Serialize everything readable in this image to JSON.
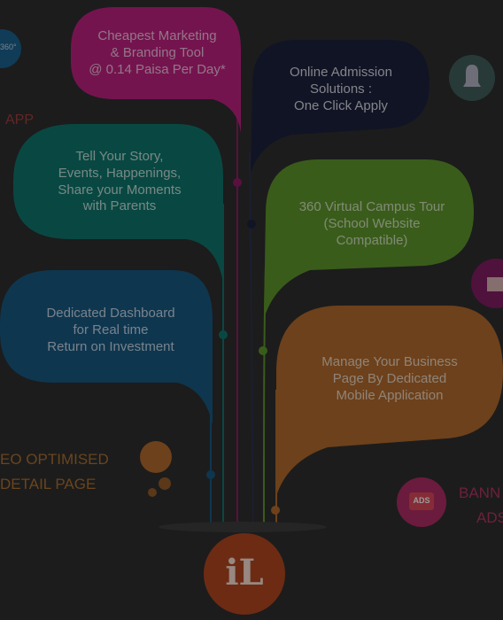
{
  "bubbles": {
    "marketing": "Cheapest Marketing\n& Branding Tool\n@ 0.14 Paisa Per Day*",
    "admission": "Online Admission\nSolutions :\nOne Click Apply",
    "story": "Tell Your Story,\nEvents, Happenings,\nShare your Moments\nwith Parents",
    "virtual": "360 Virtual Campus Tour\n(School Website\nCompatible)",
    "dashboard": "Dedicated Dashboard\nfor Real time\nReturn on Investment",
    "business": "Manage Your Business\nPage By Dedicated\nMobile  Application"
  },
  "side": {
    "app": "APP",
    "seo_line1": "EO OPTIMISED",
    "seo_line2": "DETAIL PAGE",
    "banner_line1": "BANN",
    "banner_line2": "ADS",
    "ads_badge": "ADS",
    "badge_360": "360°"
  },
  "logo": {
    "text": "iL"
  },
  "colors": {
    "magenta": "#b21f7a",
    "navy": "#1b1f3a",
    "teal": "#0f6f66",
    "green": "#5a8e2a",
    "blue": "#17537a",
    "orange": "#a8652a",
    "logo": "#a8421f"
  }
}
